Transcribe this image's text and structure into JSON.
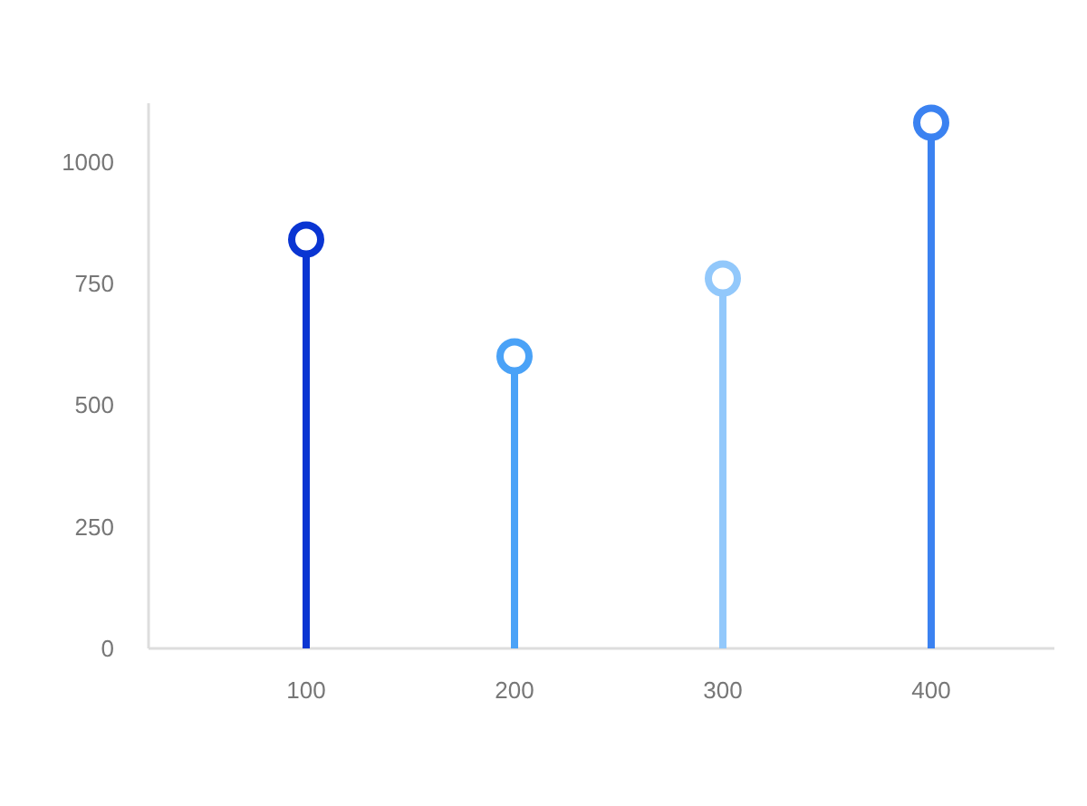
{
  "chart_data": {
    "type": "lollipop",
    "categories": [
      "100",
      "200",
      "300",
      "400"
    ],
    "values": [
      840,
      600,
      760,
      1080
    ],
    "colors": [
      "#0a35d2",
      "#4aa2f7",
      "#92c8fb",
      "#3b82f1"
    ],
    "ylim": [
      0,
      1120
    ],
    "yticks": [
      0,
      250,
      500,
      750,
      1000
    ],
    "marker": "circle"
  }
}
